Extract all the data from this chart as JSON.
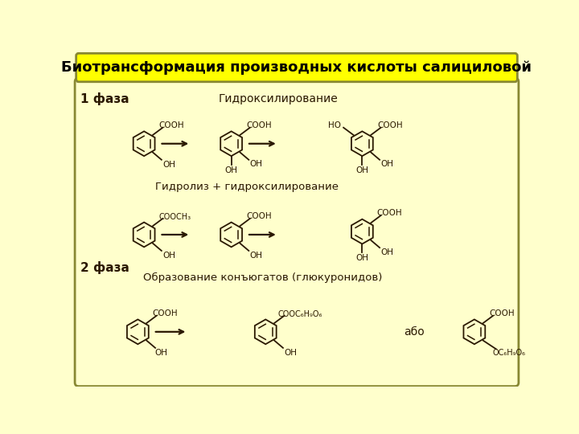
{
  "title": "Биотрансформация производных кислоты салициловой",
  "title_bg": "#FFFF00",
  "title_color": "#000000",
  "bg_color": "#FFFFCC",
  "border_color": "#888855",
  "phase1_label": "1 фаза",
  "phase2_label": "2 фаза",
  "hydroxylation_label": "Гидроксилирование",
  "hydrolysis_label": "Гидролиз + гидроксилирование",
  "conjugation_label": "Образование конъюгатов (глюкуронидов)",
  "or_label": "або",
  "mol_color": "#2a1800",
  "text_color": "#2a1800"
}
